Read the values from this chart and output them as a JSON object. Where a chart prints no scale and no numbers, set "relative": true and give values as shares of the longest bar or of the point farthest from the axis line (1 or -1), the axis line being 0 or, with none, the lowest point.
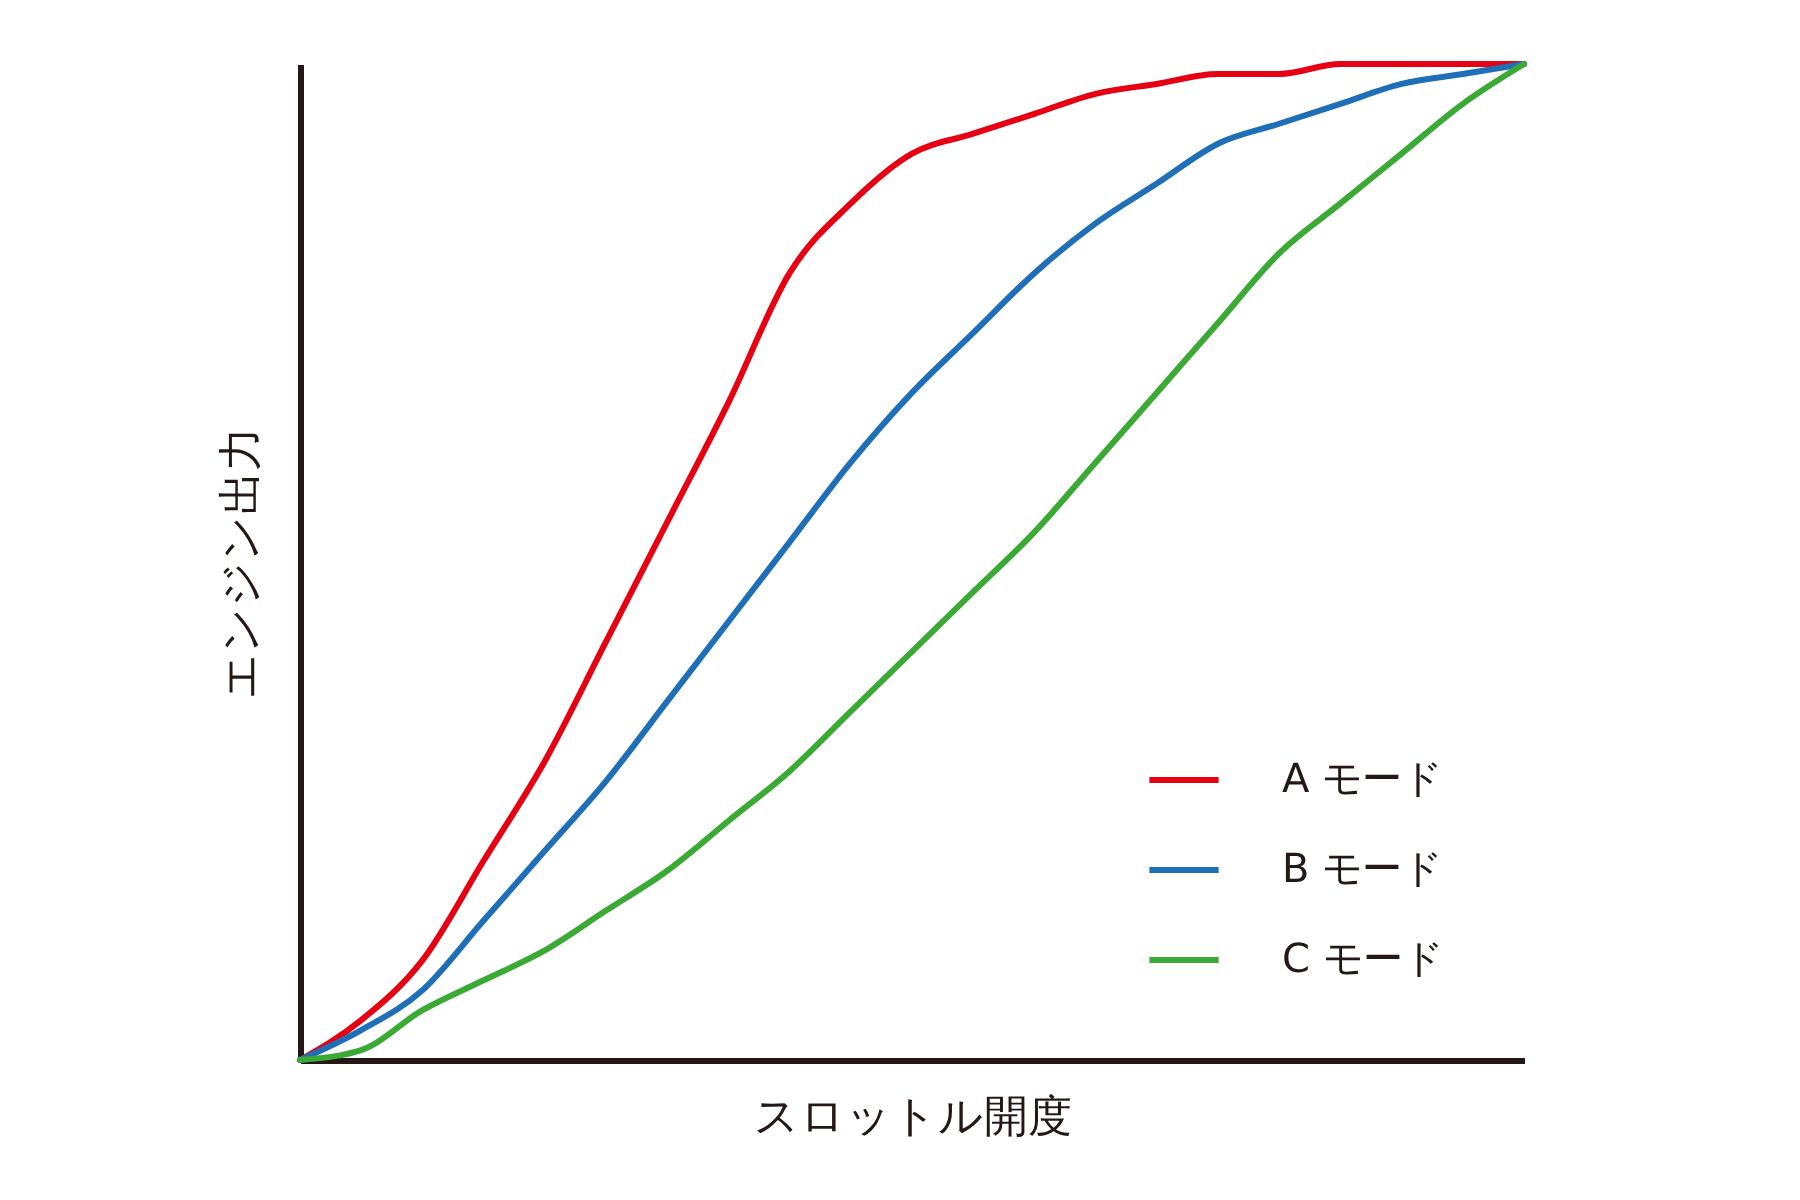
{
  "chart_data": {
    "type": "line",
    "xlabel": "スロットル開度",
    "ylabel": "エンジン出力",
    "relative": true,
    "legend": "bottom right",
    "categories": [
      null,
      null,
      null,
      null,
      null,
      null,
      null,
      null,
      null,
      null,
      null,
      null,
      null,
      null,
      null,
      null,
      null,
      null,
      null,
      null,
      null
    ],
    "series": [
      {
        "name": "A モード",
        "color": "#e60012",
        "values": [
          0,
          0.04,
          0.1,
          0.2,
          0.3,
          0.42,
          0.54,
          0.66,
          0.79,
          0.86,
          0.91,
          0.93,
          0.95,
          0.97,
          0.98,
          0.99,
          0.99,
          1,
          1,
          1,
          1
        ]
      },
      {
        "name": "B モード",
        "color": "#1f6fb8",
        "values": [
          0,
          0.03,
          0.07,
          0.14,
          0.21,
          0.28,
          0.36,
          0.44,
          0.52,
          0.6,
          0.67,
          0.73,
          0.79,
          0.84,
          0.88,
          0.92,
          0.94,
          0.96,
          0.98,
          0.99,
          1
        ]
      },
      {
        "name": "C モード",
        "color": "#3aaa35",
        "values": [
          0,
          0.01,
          0.05,
          0.08,
          0.11,
          0.15,
          0.19,
          0.24,
          0.29,
          0.35,
          0.41,
          0.47,
          0.53,
          0.6,
          0.67,
          0.74,
          0.81,
          0.86,
          0.91,
          0.96,
          1
        ]
      }
    ]
  }
}
